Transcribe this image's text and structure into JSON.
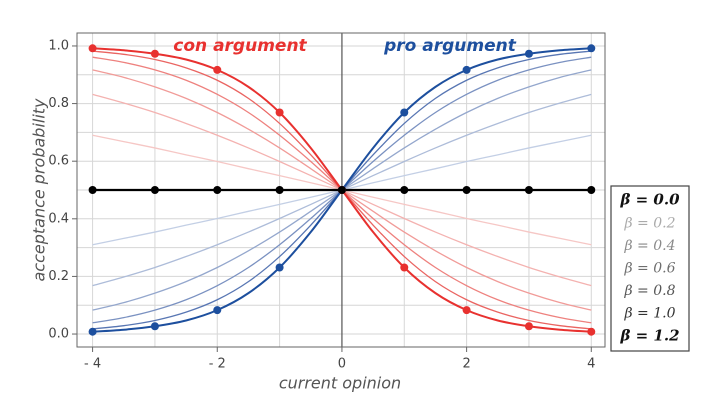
{
  "chart_data": {
    "type": "line",
    "x_label": "current opinion",
    "y_label": "acceptance probability",
    "annotations": [
      {
        "text": "con argument",
        "color": "#e8312f"
      },
      {
        "text": "pro argument",
        "color": "#1d4f9e"
      }
    ],
    "xlim": [
      -4.25,
      4.22
    ],
    "ylim": [
      -0.045,
      1.045
    ],
    "xticks": [
      {
        "value": -4,
        "label": "- 4"
      },
      {
        "value": -2,
        "label": "- 2"
      },
      0,
      2,
      4
    ],
    "yticks": [
      {
        "value": 0,
        "label": "0.0"
      },
      0.2,
      0.4,
      0.6,
      0.8,
      {
        "value": 1,
        "label": "1.0"
      }
    ],
    "xgrid": [
      -4,
      -3,
      -2,
      -1,
      0,
      1,
      2,
      3,
      4
    ],
    "ygrid": [
      0,
      0.1,
      0.2,
      0.3,
      0.4,
      0.5,
      0.6,
      0.7,
      0.8,
      0.9,
      1
    ],
    "grid": true,
    "legend": {
      "position": "right",
      "entries": [
        {
          "label": "β = 0.0",
          "color": "#111",
          "bold": true
        },
        {
          "label": "β = 0.2",
          "color": "#aaa",
          "bold": false
        },
        {
          "label": "β = 0.4",
          "color": "#8a8a8a",
          "bold": false
        },
        {
          "label": "β = 0.6",
          "color": "#6e6e6e",
          "bold": false
        },
        {
          "label": "β = 0.8",
          "color": "#555",
          "bold": false
        },
        {
          "label": "β = 1.0",
          "color": "#333",
          "bold": false
        },
        {
          "label": "β = 1.2",
          "color": "#111",
          "bold": true
        }
      ]
    },
    "x": [
      -4,
      -3.5,
      -3,
      -2.5,
      -2,
      -1.5,
      -1,
      -0.5,
      0,
      0.5,
      1,
      1.5,
      2,
      2.5,
      3,
      3.5,
      4
    ],
    "series": [
      {
        "color": "#c3cfe5",
        "width": 1.3,
        "markers": false,
        "values": [
          0.31,
          0.332,
          0.354,
          0.378,
          0.401,
          0.426,
          0.45,
          0.475,
          0.5,
          0.525,
          0.55,
          0.574,
          0.599,
          0.622,
          0.646,
          0.668,
          0.69
        ]
      },
      {
        "color": "#adbcd9",
        "width": 1.3,
        "markers": false,
        "values": [
          0.168,
          0.198,
          0.231,
          0.269,
          0.31,
          0.354,
          0.401,
          0.45,
          0.5,
          0.55,
          0.599,
          0.646,
          0.69,
          0.731,
          0.769,
          0.802,
          0.832
        ]
      },
      {
        "color": "#94a7cd",
        "width": 1.3,
        "markers": false,
        "values": [
          0.083,
          0.109,
          0.142,
          0.182,
          0.231,
          0.289,
          0.354,
          0.426,
          0.5,
          0.574,
          0.646,
          0.711,
          0.769,
          0.818,
          0.858,
          0.891,
          0.917
        ]
      },
      {
        "color": "#7a91c1",
        "width": 1.3,
        "markers": false,
        "values": [
          0.039,
          0.057,
          0.083,
          0.119,
          0.168,
          0.231,
          0.31,
          0.401,
          0.5,
          0.599,
          0.69,
          0.769,
          0.832,
          0.881,
          0.917,
          0.943,
          0.961
        ]
      },
      {
        "color": "#5876b3",
        "width": 1.3,
        "markers": false,
        "values": [
          0.018,
          0.029,
          0.047,
          0.076,
          0.119,
          0.182,
          0.269,
          0.378,
          0.5,
          0.622,
          0.731,
          0.818,
          0.881,
          0.924,
          0.953,
          0.971,
          0.982
        ]
      },
      {
        "color": "#f6c7c5",
        "width": 1.3,
        "markers": false,
        "values": [
          0.69,
          0.668,
          0.646,
          0.622,
          0.599,
          0.574,
          0.55,
          0.525,
          0.5,
          0.475,
          0.45,
          0.426,
          0.401,
          0.378,
          0.354,
          0.332,
          0.31
        ]
      },
      {
        "color": "#f4b2b0",
        "width": 1.3,
        "markers": false,
        "values": [
          0.832,
          0.802,
          0.769,
          0.731,
          0.69,
          0.646,
          0.599,
          0.55,
          0.5,
          0.45,
          0.401,
          0.354,
          0.31,
          0.269,
          0.231,
          0.198,
          0.168
        ]
      },
      {
        "color": "#f19b98",
        "width": 1.3,
        "markers": false,
        "values": [
          0.917,
          0.891,
          0.858,
          0.818,
          0.769,
          0.711,
          0.646,
          0.574,
          0.5,
          0.426,
          0.354,
          0.289,
          0.231,
          0.182,
          0.142,
          0.109,
          0.083
        ]
      },
      {
        "color": "#ee817e",
        "width": 1.3,
        "markers": false,
        "values": [
          0.961,
          0.943,
          0.917,
          0.881,
          0.832,
          0.769,
          0.69,
          0.599,
          0.5,
          0.401,
          0.31,
          0.231,
          0.168,
          0.119,
          0.083,
          0.057,
          0.039
        ]
      },
      {
        "color": "#ea6461",
        "width": 1.3,
        "markers": false,
        "values": [
          0.982,
          0.971,
          0.953,
          0.924,
          0.881,
          0.818,
          0.731,
          0.622,
          0.5,
          0.378,
          0.269,
          0.182,
          0.119,
          0.076,
          0.047,
          0.029,
          0.018
        ]
      },
      {
        "color": "#1d4f9e",
        "width": 2,
        "markers": true,
        "values": [
          0.008,
          0.015,
          0.027,
          0.047,
          0.083,
          0.142,
          0.231,
          0.354,
          0.5,
          0.646,
          0.769,
          0.858,
          0.917,
          0.953,
          0.973,
          0.985,
          0.992
        ]
      },
      {
        "color": "#e8312f",
        "width": 2,
        "markers": true,
        "values": [
          0.992,
          0.985,
          0.973,
          0.953,
          0.917,
          0.858,
          0.769,
          0.646,
          0.5,
          0.354,
          0.231,
          0.142,
          0.083,
          0.047,
          0.027,
          0.015,
          0.008
        ]
      },
      {
        "color": "#000000",
        "width": 2.2,
        "markers": true,
        "values": [
          0.5,
          0.5,
          0.5,
          0.5,
          0.5,
          0.5,
          0.5,
          0.5,
          0.5,
          0.5,
          0.5,
          0.5,
          0.5,
          0.5,
          0.5,
          0.5,
          0.5
        ]
      }
    ]
  }
}
